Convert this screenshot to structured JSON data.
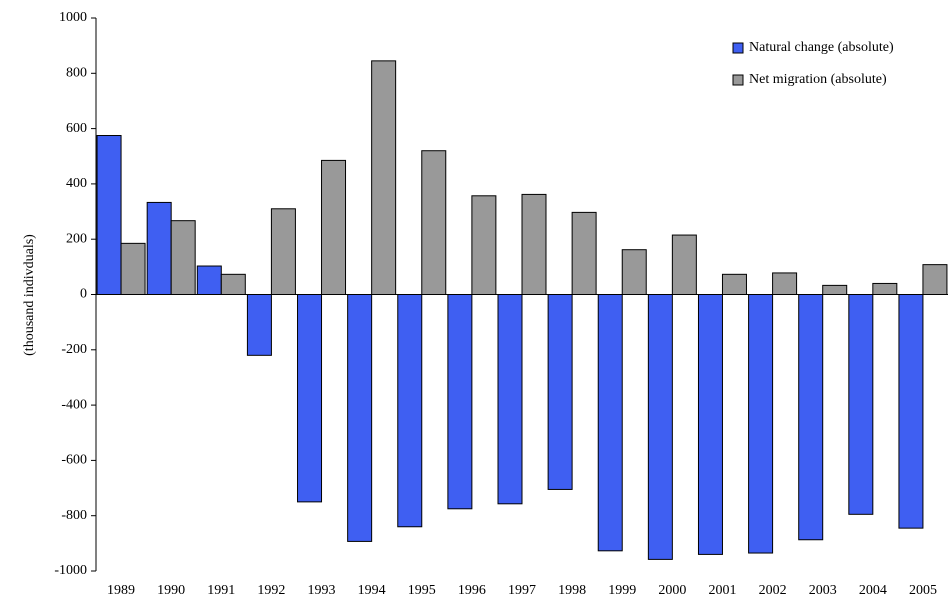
{
  "chart_data": {
    "type": "bar",
    "y_label": "(thousand indivduals)",
    "categories": [
      "1989",
      "1990",
      "1991",
      "1992",
      "1993",
      "1994",
      "1995",
      "1996",
      "1997",
      "1998",
      "1999",
      "2000",
      "2001",
      "2002",
      "2003",
      "2004",
      "2005"
    ],
    "series": [
      {
        "name": "Natural change (absolute)",
        "color": "#3f5ff2",
        "values": [
          575,
          333,
          103,
          -220,
          -750,
          -893,
          -840,
          -775,
          -757,
          -705,
          -927,
          -958,
          -940,
          -935,
          -887,
          -795,
          -845
        ]
      },
      {
        "name": "Net migration (absolute)",
        "color": "#999999",
        "values": [
          185,
          267,
          73,
          310,
          485,
          845,
          520,
          357,
          362,
          297,
          162,
          215,
          73,
          78,
          33,
          40,
          108
        ]
      }
    ],
    "ylim": [
      -1000,
      1000
    ],
    "yticks": [
      -1000,
      -800,
      -600,
      -400,
      -200,
      0,
      200,
      400,
      600,
      800,
      1000
    ],
    "grid": false,
    "legend": "top-right"
  }
}
